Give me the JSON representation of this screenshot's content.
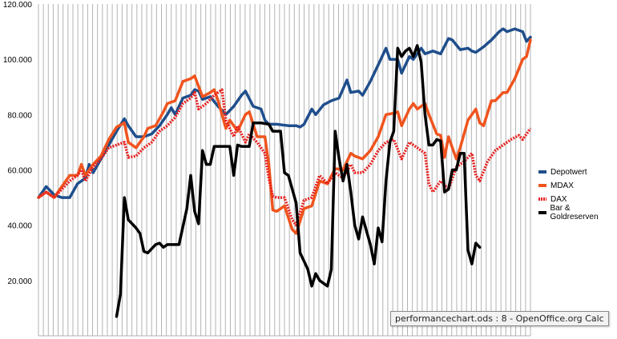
{
  "chart_data": {
    "type": "line",
    "title": "",
    "xlabel": "",
    "ylabel": "",
    "ylim": [
      0,
      120000
    ],
    "y_ticks": [
      "120.000",
      "100.000",
      "80.000",
      "60.000",
      "40.000",
      "20.000"
    ],
    "y_tick_values": [
      120000,
      100000,
      80000,
      60000,
      40000,
      20000
    ],
    "grid": {
      "horizontal": false,
      "vertical": true
    },
    "legend_position": "right",
    "x_count": 100,
    "series": [
      {
        "name": "Depotwert",
        "color": "#1f4e8c",
        "dash": "solid",
        "points": [
          [
            0,
            50000
          ],
          [
            2,
            54000
          ],
          [
            4,
            51000
          ],
          [
            6,
            50000
          ],
          [
            8,
            50000
          ],
          [
            10,
            55000
          ],
          [
            12,
            57000
          ],
          [
            13,
            62000
          ],
          [
            14,
            59000
          ],
          [
            16,
            64000
          ],
          [
            18,
            69000
          ],
          [
            20,
            74000
          ],
          [
            22,
            78500
          ],
          [
            23,
            76000
          ],
          [
            25,
            72000
          ],
          [
            27,
            72000
          ],
          [
            29,
            73000
          ],
          [
            31,
            76000
          ],
          [
            33,
            80000
          ],
          [
            34,
            82500
          ],
          [
            35,
            80000
          ],
          [
            37,
            86000
          ],
          [
            39,
            87000
          ],
          [
            40,
            89000
          ],
          [
            41,
            88500
          ],
          [
            42,
            85500
          ],
          [
            44,
            86500
          ],
          [
            46,
            83000
          ],
          [
            48,
            80000
          ],
          [
            50,
            83000
          ],
          [
            52,
            87000
          ],
          [
            53,
            88500
          ],
          [
            55,
            83000
          ],
          [
            57,
            82000
          ],
          [
            58,
            78000
          ],
          [
            59,
            76500
          ],
          [
            61,
            76500
          ],
          [
            64,
            76000
          ],
          [
            66,
            76000
          ],
          [
            67,
            75500
          ],
          [
            68,
            76500
          ],
          [
            70,
            82000
          ],
          [
            71,
            80000
          ],
          [
            73,
            83500
          ],
          [
            75,
            85000
          ],
          [
            77,
            86000
          ],
          [
            79,
            92500
          ],
          [
            80,
            88000
          ],
          [
            82,
            88500
          ],
          [
            83,
            87000
          ],
          [
            85,
            92000
          ],
          [
            87,
            98000
          ],
          [
            89,
            104000
          ],
          [
            90,
            100000
          ],
          [
            92,
            100000
          ],
          [
            93,
            95000
          ],
          [
            95,
            101000
          ],
          [
            96,
            100000
          ],
          [
            98,
            104000
          ],
          [
            99,
            102000
          ],
          [
            101,
            103000
          ],
          [
            103,
            102000
          ],
          [
            105,
            107500
          ],
          [
            106,
            107000
          ],
          [
            108,
            103500
          ],
          [
            110,
            104000
          ],
          [
            111,
            103000
          ],
          [
            112,
            102500
          ],
          [
            114,
            104500
          ],
          [
            116,
            107000
          ],
          [
            118,
            110000
          ],
          [
            119,
            111000
          ],
          [
            120,
            110000
          ],
          [
            122,
            111000
          ],
          [
            124,
            110000
          ],
          [
            125,
            106500
          ],
          [
            126,
            108000
          ]
        ]
      },
      {
        "name": "MDAX",
        "color": "#f0541e",
        "dash": "solid",
        "points": [
          [
            0,
            50000
          ],
          [
            2,
            52000
          ],
          [
            4,
            50000
          ],
          [
            6,
            54000
          ],
          [
            8,
            58000
          ],
          [
            10,
            58000
          ],
          [
            11,
            62000
          ],
          [
            12,
            58000
          ],
          [
            14,
            62000
          ],
          [
            16,
            65000
          ],
          [
            18,
            71000
          ],
          [
            20,
            75500
          ],
          [
            22,
            77000
          ],
          [
            23,
            70000
          ],
          [
            25,
            68000
          ],
          [
            27,
            72000
          ],
          [
            28,
            75000
          ],
          [
            30,
            76000
          ],
          [
            32,
            81000
          ],
          [
            33,
            84000
          ],
          [
            35,
            85000
          ],
          [
            37,
            92000
          ],
          [
            39,
            93000
          ],
          [
            40,
            94000
          ],
          [
            42,
            86500
          ],
          [
            44,
            88000
          ],
          [
            45,
            89000
          ],
          [
            46,
            85000
          ],
          [
            48,
            75000
          ],
          [
            49,
            78000
          ],
          [
            51,
            74000
          ],
          [
            53,
            80000
          ],
          [
            54,
            81000
          ],
          [
            56,
            72000
          ],
          [
            58,
            72000
          ],
          [
            59,
            62000
          ],
          [
            60,
            45500
          ],
          [
            61,
            45000
          ],
          [
            63,
            47000
          ],
          [
            65,
            38500
          ],
          [
            66,
            37000
          ],
          [
            68,
            46000
          ],
          [
            70,
            47000
          ],
          [
            72,
            56000
          ],
          [
            74,
            55000
          ],
          [
            76,
            60500
          ],
          [
            78,
            60000
          ],
          [
            80,
            66000
          ],
          [
            81,
            65000
          ],
          [
            83,
            64000
          ],
          [
            85,
            67000
          ],
          [
            87,
            72000
          ],
          [
            89,
            80000
          ],
          [
            91,
            80500
          ],
          [
            92,
            81000
          ],
          [
            93,
            76000
          ],
          [
            95,
            82000
          ],
          [
            96,
            84000
          ],
          [
            97,
            82000
          ],
          [
            99,
            84000
          ],
          [
            100,
            80000
          ],
          [
            102,
            73000
          ],
          [
            103,
            72500
          ],
          [
            104,
            64500
          ],
          [
            105,
            72000
          ],
          [
            106,
            68000
          ],
          [
            107,
            64000
          ],
          [
            108,
            68000
          ],
          [
            110,
            78000
          ],
          [
            112,
            82000
          ],
          [
            113,
            77000
          ],
          [
            114,
            76000
          ],
          [
            116,
            85000
          ],
          [
            117,
            85000
          ],
          [
            119,
            88000
          ],
          [
            120,
            88000
          ],
          [
            122,
            93000
          ],
          [
            124,
            100000
          ],
          [
            125,
            101000
          ],
          [
            126,
            107000
          ]
        ]
      },
      {
        "name": "DAX",
        "color": "#e82020",
        "dash": "dotted",
        "points": [
          [
            0,
            50000
          ],
          [
            2,
            52000
          ],
          [
            4,
            50000
          ],
          [
            6,
            53000
          ],
          [
            8,
            56000
          ],
          [
            10,
            58000
          ],
          [
            11,
            60000
          ],
          [
            12,
            56000
          ],
          [
            14,
            61000
          ],
          [
            16,
            64000
          ],
          [
            18,
            68000
          ],
          [
            20,
            69000
          ],
          [
            22,
            70000
          ],
          [
            23,
            64500
          ],
          [
            25,
            65000
          ],
          [
            27,
            68000
          ],
          [
            29,
            70000
          ],
          [
            31,
            74000
          ],
          [
            33,
            76000
          ],
          [
            35,
            79000
          ],
          [
            37,
            84000
          ],
          [
            39,
            86000
          ],
          [
            40,
            88000
          ],
          [
            41,
            82000
          ],
          [
            43,
            84000
          ],
          [
            45,
            87000
          ],
          [
            47,
            89000
          ],
          [
            48,
            78000
          ],
          [
            50,
            72000
          ],
          [
            51,
            76000
          ],
          [
            53,
            70000
          ],
          [
            54,
            73000
          ],
          [
            56,
            70000
          ],
          [
            58,
            66000
          ],
          [
            59,
            57000
          ],
          [
            60,
            50500
          ],
          [
            61,
            50000
          ],
          [
            63,
            50000
          ],
          [
            65,
            42000
          ],
          [
            66,
            40000
          ],
          [
            68,
            49000
          ],
          [
            70,
            50000
          ],
          [
            72,
            58000
          ],
          [
            74,
            55000
          ],
          [
            76,
            59000
          ],
          [
            78,
            57000
          ],
          [
            80,
            62000
          ],
          [
            81,
            59000
          ],
          [
            83,
            59000
          ],
          [
            85,
            62000
          ],
          [
            87,
            67000
          ],
          [
            89,
            70000
          ],
          [
            91,
            71000
          ],
          [
            93,
            64000
          ],
          [
            95,
            70000
          ],
          [
            97,
            68000
          ],
          [
            99,
            66000
          ],
          [
            100,
            55000
          ],
          [
            101,
            52000
          ],
          [
            103,
            56000
          ],
          [
            105,
            53000
          ],
          [
            107,
            61000
          ],
          [
            109,
            63000
          ],
          [
            111,
            66000
          ],
          [
            112,
            58000
          ],
          [
            113,
            56000
          ],
          [
            115,
            63000
          ],
          [
            117,
            67000
          ],
          [
            119,
            69000
          ],
          [
            121,
            71000
          ],
          [
            123,
            72500
          ],
          [
            124,
            71000
          ],
          [
            126,
            75000
          ]
        ]
      },
      {
        "name": "Bar & Goldreserven",
        "color": "#000000",
        "dash": "solid",
        "points": [
          [
            20,
            7000
          ],
          [
            21,
            15000
          ],
          [
            22,
            50000
          ],
          [
            23,
            42000
          ],
          [
            25,
            39000
          ],
          [
            26,
            37000
          ],
          [
            27,
            30500
          ],
          [
            28,
            30000
          ],
          [
            30,
            33000
          ],
          [
            31,
            33500
          ],
          [
            32,
            32000
          ],
          [
            33,
            33000
          ],
          [
            35,
            33000
          ],
          [
            36,
            33000
          ],
          [
            38,
            46000
          ],
          [
            39,
            58000
          ],
          [
            40,
            45000
          ],
          [
            41,
            40500
          ],
          [
            42,
            67000
          ],
          [
            43,
            62000
          ],
          [
            44,
            62000
          ],
          [
            45,
            68500
          ],
          [
            47,
            68500
          ],
          [
            49,
            68500
          ],
          [
            50,
            58000
          ],
          [
            51,
            69000
          ],
          [
            52,
            68500
          ],
          [
            54,
            68500
          ],
          [
            55,
            77000
          ],
          [
            57,
            77000
          ],
          [
            59,
            76500
          ],
          [
            60,
            74000
          ],
          [
            62,
            74000
          ],
          [
            63,
            59000
          ],
          [
            64,
            58000
          ],
          [
            66,
            48000
          ],
          [
            67,
            30000
          ],
          [
            68,
            27000
          ],
          [
            69,
            24000
          ],
          [
            70,
            18000
          ],
          [
            71,
            22500
          ],
          [
            72,
            20000
          ],
          [
            73,
            19000
          ],
          [
            74,
            18000
          ],
          [
            75,
            24000
          ],
          [
            76,
            74000
          ],
          [
            77,
            64000
          ],
          [
            78,
            56000
          ],
          [
            79,
            62000
          ],
          [
            80,
            52000
          ],
          [
            81,
            40000
          ],
          [
            82,
            35000
          ],
          [
            83,
            43000
          ],
          [
            84,
            38000
          ],
          [
            85,
            33000
          ],
          [
            86,
            26000
          ],
          [
            87,
            39000
          ],
          [
            88,
            34000
          ],
          [
            89,
            56000
          ],
          [
            90,
            70000
          ],
          [
            91,
            74000
          ],
          [
            92,
            104000
          ],
          [
            93,
            101000
          ],
          [
            94,
            103000
          ],
          [
            95,
            104000
          ],
          [
            96,
            101000
          ],
          [
            97,
            105000
          ],
          [
            98,
            99000
          ],
          [
            99,
            80000
          ],
          [
            100,
            69000
          ],
          [
            101,
            69000
          ],
          [
            102,
            71000
          ],
          [
            103,
            70500
          ],
          [
            104,
            52000
          ],
          [
            105,
            53000
          ],
          [
            106,
            60000
          ],
          [
            107,
            60000
          ],
          [
            108,
            66000
          ],
          [
            109,
            66000
          ],
          [
            110,
            31000
          ],
          [
            111,
            26000
          ],
          [
            112,
            33500
          ],
          [
            113,
            32000
          ]
        ]
      }
    ],
    "legend": [
      "Depotwert",
      "MDAX",
      "DAX",
      "Bar & Goldreserven"
    ]
  },
  "tooltip_text": "performancechart.ods : 8 - OpenOffice.org Calc"
}
